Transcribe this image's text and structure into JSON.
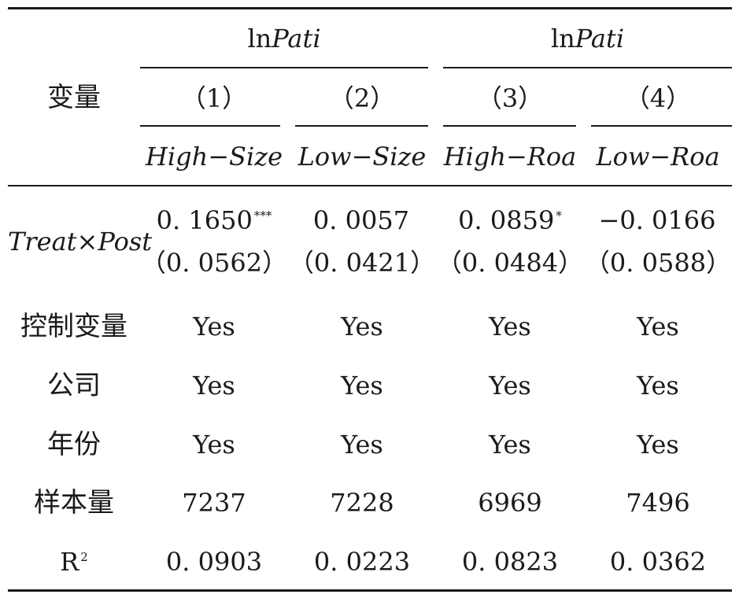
{
  "table": {
    "row_header": "变量",
    "group_headers": [
      {
        "prefix": "ln",
        "italic": "Pati"
      },
      {
        "prefix": "ln",
        "italic": "Pati"
      }
    ],
    "column_numbers": [
      "（1）",
      "（2）",
      "（3）",
      "（4）"
    ],
    "column_labels": [
      "High−Size",
      "Low−Size",
      "High−Roa",
      "Low−Roa"
    ],
    "interaction": {
      "label": "Treat×Post",
      "coefs": [
        "0. 1650",
        "0. 0057",
        "0. 0859",
        "−0. 0166"
      ],
      "stars": [
        "***",
        "",
        "*",
        ""
      ],
      "ses": [
        "（0. 0562）",
        "（0. 0421）",
        "（0. 0484）",
        "（0. 0588）"
      ]
    },
    "rows": [
      {
        "label": "控制变量",
        "values": [
          "Yes",
          "Yes",
          "Yes",
          "Yes"
        ]
      },
      {
        "label": "公司",
        "values": [
          "Yes",
          "Yes",
          "Yes",
          "Yes"
        ]
      },
      {
        "label": "年份",
        "values": [
          "Yes",
          "Yes",
          "Yes",
          "Yes"
        ]
      },
      {
        "label": "样本量",
        "values": [
          "7237",
          "7228",
          "6969",
          "7496"
        ]
      }
    ],
    "r2": {
      "label": "R",
      "label_sup": "2",
      "values": [
        "0. 0903",
        "0. 0223",
        "0. 0823",
        "0. 0362"
      ]
    }
  }
}
